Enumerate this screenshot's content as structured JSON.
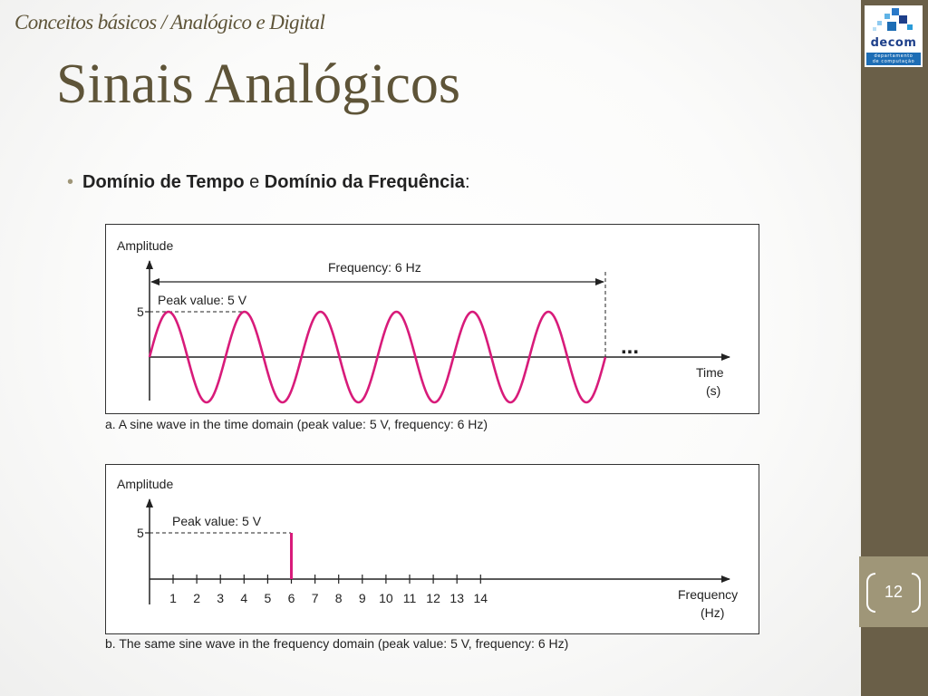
{
  "header": {
    "breadcrumb": "Conceitos básicos / Analógico e Digital",
    "title": "Sinais Analógicos"
  },
  "bullet": {
    "term1": "Domínio de Tempo",
    "connector": "e",
    "term2": "Domínio da Frequência",
    "colon": ":"
  },
  "logo": {
    "name": "decom",
    "subtitle_line1": "departamento",
    "subtitle_line2": "de computação"
  },
  "page": {
    "number": "12"
  },
  "colors": {
    "accent_dark": "#5e5438",
    "sidebar": "#6a5f48",
    "page_panel": "#9f9678",
    "signal": "#d81b7a"
  },
  "chart_data": [
    {
      "type": "line",
      "ylabel": "Amplitude",
      "xlabel_line1": "Time",
      "xlabel_line2": "(s)",
      "frequency_label": "Frequency: 6 Hz",
      "peak_label": "Peak value: 5 V",
      "y_tick": "5",
      "ellipsis": "...",
      "peak_value": 5,
      "frequency_hz": 6,
      "cycles": 6,
      "caption": "a. A sine wave in the time domain (peak value: 5 V, frequency: 6 Hz)"
    },
    {
      "type": "bar",
      "ylabel": "Amplitude",
      "xlabel_line1": "Frequency",
      "xlabel_line2": "(Hz)",
      "peak_label": "Peak value: 5 V",
      "y_tick": "5",
      "categories": [
        "1",
        "2",
        "3",
        "4",
        "5",
        "6",
        "7",
        "8",
        "9",
        "10",
        "11",
        "12",
        "13",
        "14"
      ],
      "values": [
        0,
        0,
        0,
        0,
        0,
        5,
        0,
        0,
        0,
        0,
        0,
        0,
        0,
        0
      ],
      "ylim": [
        0,
        5
      ],
      "caption": "b. The same sine wave in the frequency domain (peak value: 5 V, frequency: 6 Hz)"
    }
  ]
}
